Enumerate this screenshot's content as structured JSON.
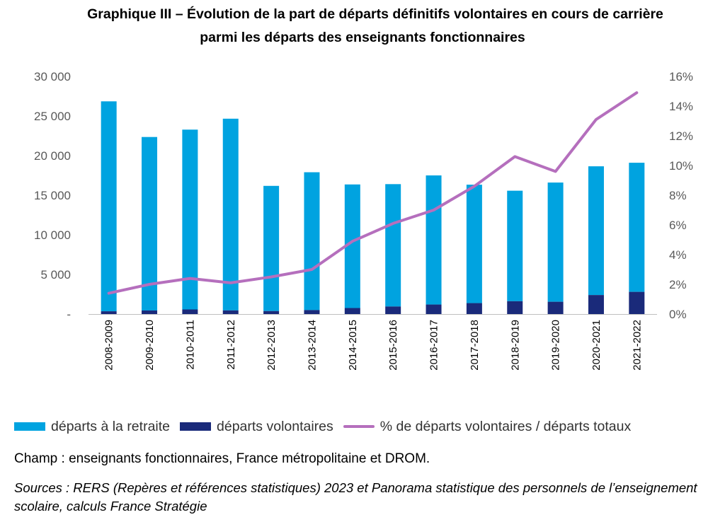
{
  "title_line1": "Graphique III – Évolution de la part de départs définitifs volontaires en cours de carrière",
  "title_line2": "parmi les départs des enseignants fonctionnaires",
  "chart_data": {
    "type": "bar",
    "stacked": true,
    "categories": [
      "2008-2009",
      "2009-2010",
      "2010-2011",
      "2011-2012",
      "2012-2013",
      "2013-2014",
      "2014-2015",
      "2015-2016",
      "2016-2017",
      "2017-2018",
      "2018-2019",
      "2019-2020",
      "2020-2021",
      "2021-2022"
    ],
    "series": [
      {
        "name": "départs volontaires",
        "type": "bar",
        "axis": "left",
        "color": "#1a2a7a",
        "values": [
          350,
          450,
          580,
          460,
          380,
          500,
          760,
          950,
          1200,
          1380,
          1620,
          1550,
          2400,
          2800
        ]
      },
      {
        "name": "départs à la retraite",
        "type": "bar",
        "axis": "left",
        "color": "#00a3e0",
        "values": [
          26500,
          21900,
          22700,
          24200,
          15800,
          17400,
          15600,
          15450,
          16300,
          14950,
          13950,
          15050,
          16250,
          16300
        ]
      },
      {
        "name": "% de départs volontaires / départs totaux",
        "type": "line",
        "axis": "right",
        "color": "#b56fbd",
        "values": [
          1.4,
          2.0,
          2.4,
          2.1,
          2.5,
          3.0,
          4.9,
          6.1,
          7.0,
          8.6,
          10.6,
          9.6,
          13.1,
          14.9
        ]
      }
    ],
    "y_left": {
      "min": 0,
      "max": 30000,
      "ticks": [
        0,
        5000,
        10000,
        15000,
        20000,
        25000,
        30000
      ],
      "tick_labels": [
        "-",
        "5 000",
        "10 000",
        "15 000",
        "20 000",
        "25 000",
        "30 000"
      ]
    },
    "y_right": {
      "min": 0,
      "max": 16,
      "ticks": [
        0,
        2,
        4,
        6,
        8,
        10,
        12,
        14,
        16
      ],
      "tick_labels": [
        "0%",
        "2%",
        "4%",
        "6%",
        "8%",
        "10%",
        "12%",
        "14%",
        "16%"
      ]
    },
    "grid": false,
    "legend_position": "bottom"
  },
  "legend": {
    "retraite": "départs à la retraite",
    "volontaires": "départs volontaires",
    "pct": "% de départs volontaires / départs totaux"
  },
  "colors": {
    "retraite": "#00a3e0",
    "volontaires": "#1a2a7a",
    "pct": "#b56fbd"
  },
  "champ": "Champ : enseignants fonctionnaires, France métropolitaine et DROM.",
  "sources": "Sources : RERS (Repères et références statistiques) 2023 et Panorama statistique des personnels de l’enseignement scolaire, calculs France Stratégie"
}
